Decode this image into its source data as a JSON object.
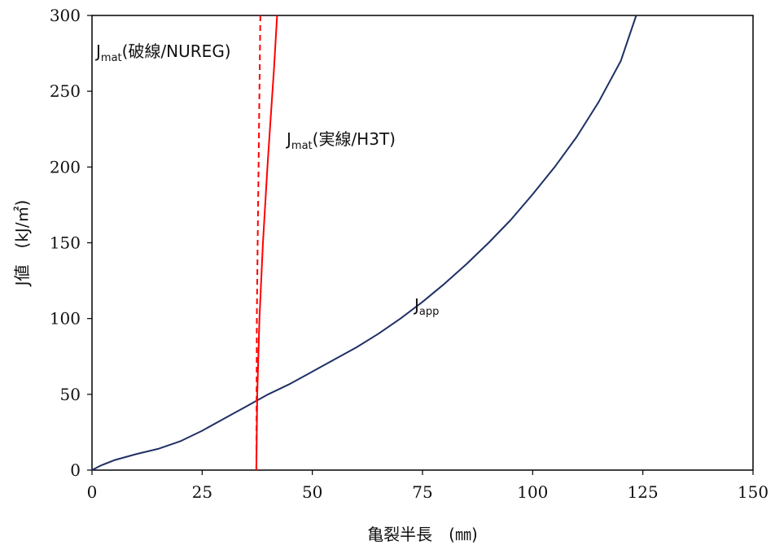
{
  "chart_data": {
    "type": "line",
    "xlabel": "亀裂半長　(㎜)",
    "ylabel": "J値　(kJ/㎡)",
    "xlim": [
      0,
      150
    ],
    "ylim": [
      0,
      300
    ],
    "x_ticks": [
      "0",
      "25",
      "50",
      "75",
      "100",
      "125",
      "150"
    ],
    "y_ticks": [
      "0",
      "50",
      "100",
      "150",
      "200",
      "250",
      "300"
    ],
    "grid": false,
    "series": [
      {
        "name": "Japp",
        "color": "#1f3066",
        "style": "solid",
        "points": [
          [
            0,
            0
          ],
          [
            2,
            3
          ],
          [
            5,
            6.5
          ],
          [
            10,
            10.5
          ],
          [
            15,
            14
          ],
          [
            20,
            19
          ],
          [
            25,
            26
          ],
          [
            30,
            34
          ],
          [
            35,
            42
          ],
          [
            37.5,
            46
          ],
          [
            40,
            50
          ],
          [
            45,
            57
          ],
          [
            50,
            65
          ],
          [
            55,
            73
          ],
          [
            60,
            81
          ],
          [
            65,
            90
          ],
          [
            70,
            100
          ],
          [
            75,
            111
          ],
          [
            80,
            123
          ],
          [
            85,
            136
          ],
          [
            90,
            150
          ],
          [
            95,
            165
          ],
          [
            100,
            182
          ],
          [
            105,
            200
          ],
          [
            110,
            220
          ],
          [
            115,
            243
          ],
          [
            120,
            270
          ],
          [
            123.5,
            300
          ]
        ]
      },
      {
        "name": "Jmat(破線/NUREG)",
        "color": "#ff0000",
        "style": "dashed",
        "points": [
          [
            37.3,
            0
          ],
          [
            37.35,
            50
          ],
          [
            37.4,
            100
          ],
          [
            37.6,
            150
          ],
          [
            37.8,
            200
          ],
          [
            38,
            250
          ],
          [
            38.2,
            300
          ]
        ]
      },
      {
        "name": "Jmat(実線/H3T)",
        "color": "#ff0000",
        "style": "solid",
        "points": [
          [
            37.3,
            0
          ],
          [
            37.5,
            50
          ],
          [
            38,
            100
          ],
          [
            38.8,
            150
          ],
          [
            39.8,
            200
          ],
          [
            40.5,
            230
          ],
          [
            41.3,
            265
          ],
          [
            42,
            300
          ]
        ]
      }
    ],
    "annotations": [
      {
        "main": "J",
        "sub": "mat",
        "rest": "(破線/NUREG)"
      },
      {
        "main": "J",
        "sub": "mat",
        "rest": "(実線/H3T)"
      },
      {
        "main": "J",
        "sub": "app",
        "rest": ""
      }
    ]
  }
}
